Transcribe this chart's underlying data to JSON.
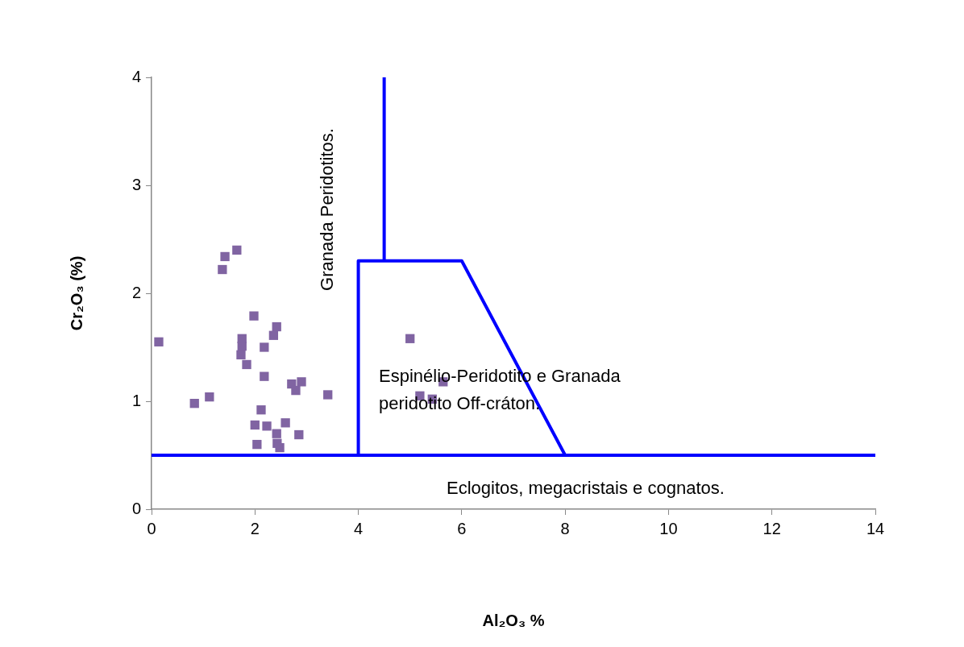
{
  "chart_data": {
    "type": "scatter",
    "xlabel": "Al₂O₃ %",
    "ylabel": "Cr₂O₃ (%)",
    "xlim": [
      0,
      14
    ],
    "xticks": [
      0,
      2,
      4,
      6,
      8,
      10,
      12,
      14
    ],
    "ylim": [
      0,
      4
    ],
    "yticks": [
      0,
      1,
      2,
      3,
      4
    ],
    "grid": false,
    "legend": false,
    "series": [
      {
        "color": "#8064a2",
        "marker": "square",
        "x": [
          0.14,
          0.83,
          1.12,
          1.37,
          1.42,
          1.65,
          1.98,
          1.75,
          1.75,
          1.73,
          1.84,
          2.42,
          2.36,
          2.18,
          2.18,
          2.71,
          2.9,
          2.79,
          3.41,
          2.12,
          2.0,
          2.23,
          2.59,
          2.85,
          2.04,
          2.42,
          2.43,
          2.48,
          5.0,
          5.19,
          5.43,
          5.64
        ],
        "values": [
          1.55,
          0.98,
          1.04,
          2.22,
          2.34,
          2.4,
          1.79,
          1.58,
          1.51,
          1.43,
          1.34,
          1.69,
          1.61,
          1.5,
          1.23,
          1.16,
          1.18,
          1.1,
          1.06,
          0.92,
          0.78,
          0.77,
          0.8,
          0.69,
          0.6,
          0.7,
          0.61,
          0.57,
          1.58,
          1.05,
          1.02,
          1.18
        ]
      },
      {
        "type": "line",
        "color": "#0000ff",
        "x": [
          0,
          14
        ],
        "values": [
          0.5,
          0.5
        ]
      },
      {
        "type": "line",
        "color": "#0000ff",
        "x": [
          4,
          4,
          6,
          8
        ],
        "values": [
          0.5,
          2.3,
          2.3,
          0.5
        ]
      },
      {
        "type": "line",
        "color": "#0000ff",
        "x": [
          4.5,
          4.5
        ],
        "values": [
          2.3,
          4
        ]
      }
    ],
    "annotations": [
      "Granada Peridotitos.",
      "Espinélio-Peridotito e Granada peridotito Off-cráton.",
      "Eclogitos, megacristais e cognatos."
    ]
  }
}
